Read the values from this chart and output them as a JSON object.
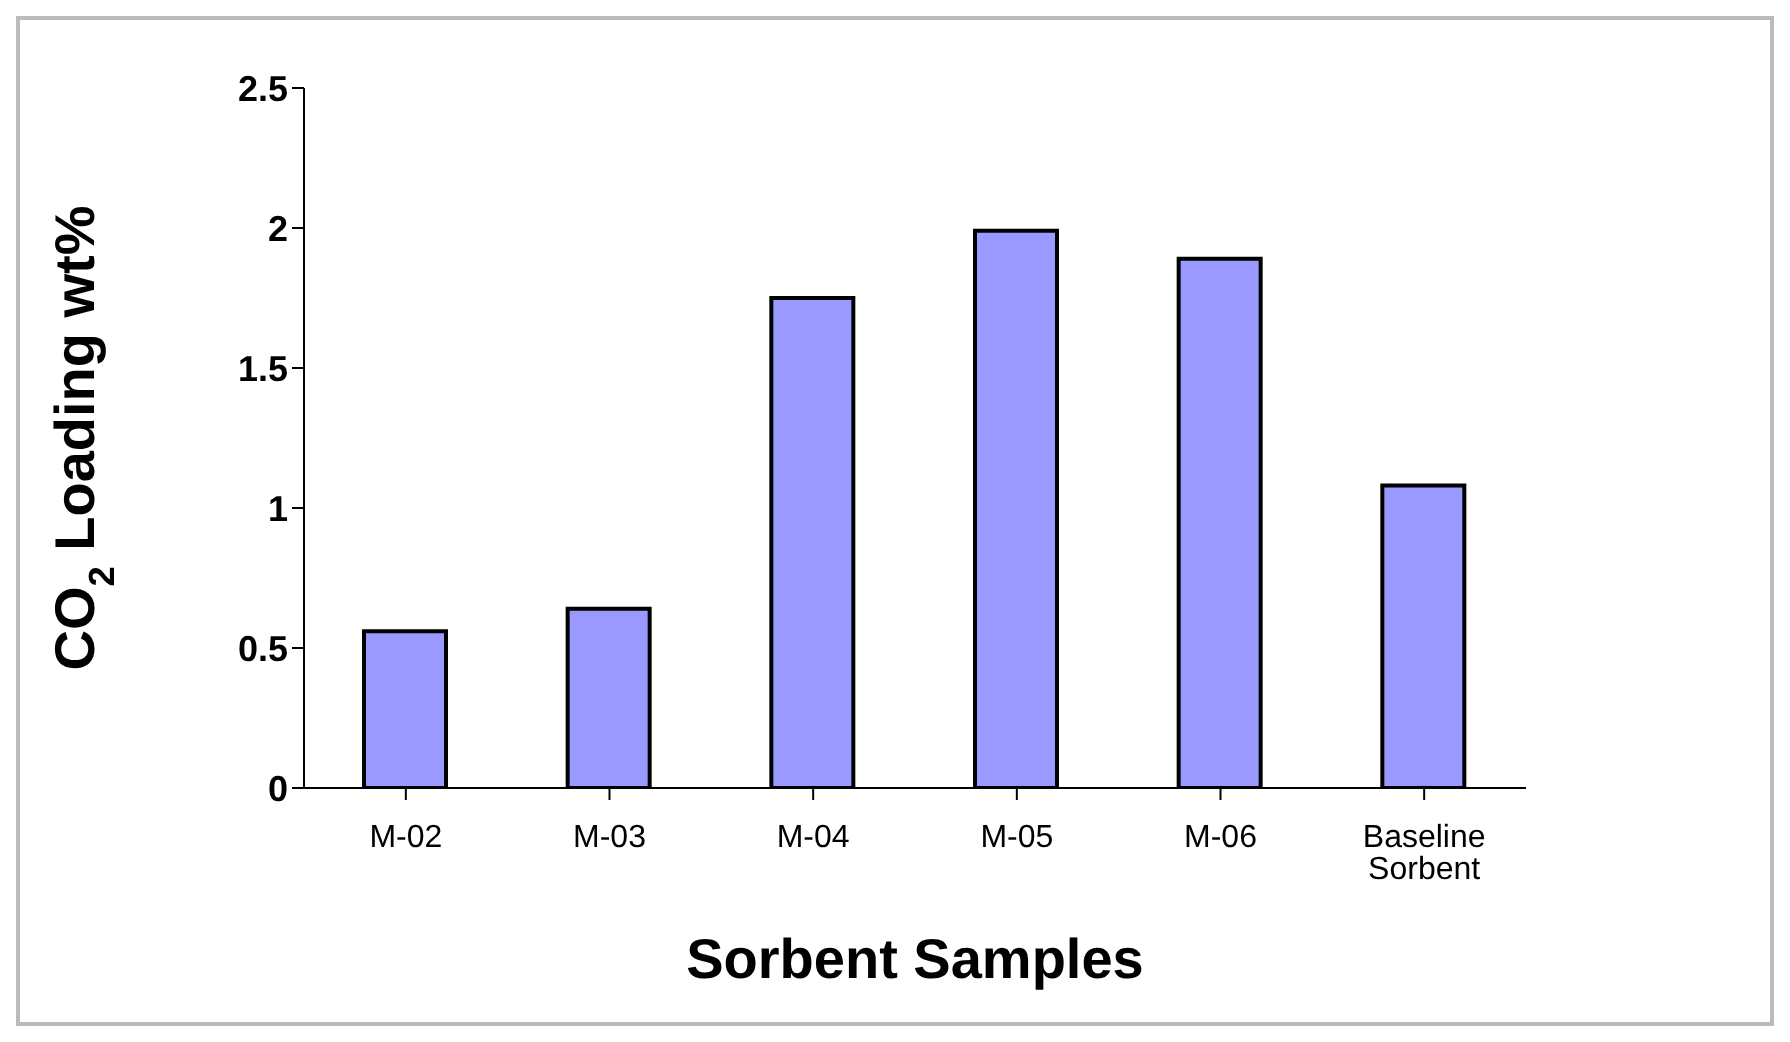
{
  "chart_data": {
    "type": "bar",
    "xlabel": "Sorbent Samples",
    "ylabel": "CO$_{2}$ Loading wt%",
    "categories": [
      "M-02",
      "M-03",
      "M-04",
      "M-05",
      "M-06",
      "Baseline Sorbent"
    ],
    "values": [
      0.56,
      0.64,
      1.75,
      1.99,
      1.89,
      1.08
    ],
    "color": "#9999ff",
    "ylim": [
      0,
      2.5
    ],
    "yticks": [
      0,
      0.5,
      1,
      1.5,
      2,
      2.5
    ],
    "grid": false,
    "legend": false
  }
}
